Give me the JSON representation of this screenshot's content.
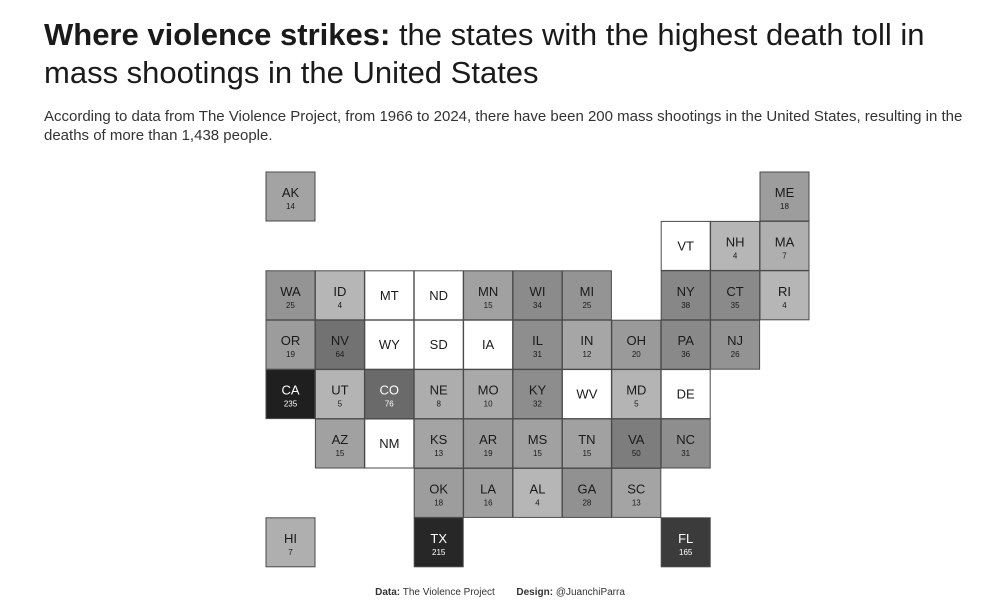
{
  "title": {
    "bold": "Where violence strikes:",
    "rest": " the states with the highest death toll in mass shootings in the United States"
  },
  "subtitle": "According to data from The Violence Project, from 1966 to 2024, there have been 200 mass shootings in the United States, resulting in the deaths of more than 1,438 people.",
  "footer": {
    "data_label": "Data:",
    "data_value": "The Violence Project",
    "design_label": "Design:",
    "design_value": "@JuanchiParra"
  },
  "chart_data": {
    "type": "heatmap",
    "layout": "tile-grid-map",
    "color_scale": [
      "#ffffff",
      "#1f1f1f"
    ],
    "states": [
      {
        "abbr": "AK",
        "value": 14,
        "row": 0,
        "col": 0
      },
      {
        "abbr": "ME",
        "value": 18,
        "row": 0,
        "col": 10
      },
      {
        "abbr": "VT",
        "value": null,
        "row": 1,
        "col": 8
      },
      {
        "abbr": "NH",
        "value": 4,
        "row": 1,
        "col": 9
      },
      {
        "abbr": "MA",
        "value": 7,
        "row": 1,
        "col": 10
      },
      {
        "abbr": "WA",
        "value": 25,
        "row": 2,
        "col": 0
      },
      {
        "abbr": "ID",
        "value": 4,
        "row": 2,
        "col": 1
      },
      {
        "abbr": "MT",
        "value": null,
        "row": 2,
        "col": 2
      },
      {
        "abbr": "ND",
        "value": null,
        "row": 2,
        "col": 3
      },
      {
        "abbr": "MN",
        "value": 15,
        "row": 2,
        "col": 4
      },
      {
        "abbr": "WI",
        "value": 34,
        "row": 2,
        "col": 5
      },
      {
        "abbr": "MI",
        "value": 25,
        "row": 2,
        "col": 6
      },
      {
        "abbr": "NY",
        "value": 38,
        "row": 2,
        "col": 8
      },
      {
        "abbr": "CT",
        "value": 35,
        "row": 2,
        "col": 9
      },
      {
        "abbr": "RI",
        "value": 4,
        "row": 2,
        "col": 10
      },
      {
        "abbr": "OR",
        "value": 19,
        "row": 3,
        "col": 0
      },
      {
        "abbr": "NV",
        "value": 64,
        "row": 3,
        "col": 1
      },
      {
        "abbr": "WY",
        "value": null,
        "row": 3,
        "col": 2
      },
      {
        "abbr": "SD",
        "value": null,
        "row": 3,
        "col": 3
      },
      {
        "abbr": "IA",
        "value": null,
        "row": 3,
        "col": 4
      },
      {
        "abbr": "IL",
        "value": 31,
        "row": 3,
        "col": 5
      },
      {
        "abbr": "IN",
        "value": 12,
        "row": 3,
        "col": 6
      },
      {
        "abbr": "OH",
        "value": 20,
        "row": 3,
        "col": 7
      },
      {
        "abbr": "PA",
        "value": 36,
        "row": 3,
        "col": 8
      },
      {
        "abbr": "NJ",
        "value": 26,
        "row": 3,
        "col": 9
      },
      {
        "abbr": "CA",
        "value": 235,
        "row": 4,
        "col": 0
      },
      {
        "abbr": "UT",
        "value": 5,
        "row": 4,
        "col": 1
      },
      {
        "abbr": "CO",
        "value": 76,
        "row": 4,
        "col": 2
      },
      {
        "abbr": "NE",
        "value": 8,
        "row": 4,
        "col": 3
      },
      {
        "abbr": "MO",
        "value": 10,
        "row": 4,
        "col": 4
      },
      {
        "abbr": "KY",
        "value": 32,
        "row": 4,
        "col": 5
      },
      {
        "abbr": "WV",
        "value": null,
        "row": 4,
        "col": 6
      },
      {
        "abbr": "MD",
        "value": 5,
        "row": 4,
        "col": 7
      },
      {
        "abbr": "DE",
        "value": null,
        "row": 4,
        "col": 8
      },
      {
        "abbr": "AZ",
        "value": 15,
        "row": 5,
        "col": 1
      },
      {
        "abbr": "NM",
        "value": null,
        "row": 5,
        "col": 2
      },
      {
        "abbr": "KS",
        "value": 13,
        "row": 5,
        "col": 3
      },
      {
        "abbr": "AR",
        "value": 19,
        "row": 5,
        "col": 4
      },
      {
        "abbr": "MS",
        "value": 15,
        "row": 5,
        "col": 5
      },
      {
        "abbr": "TN",
        "value": 15,
        "row": 5,
        "col": 6
      },
      {
        "abbr": "VA",
        "value": 50,
        "row": 5,
        "col": 7
      },
      {
        "abbr": "NC",
        "value": 31,
        "row": 5,
        "col": 8
      },
      {
        "abbr": "OK",
        "value": 18,
        "row": 6,
        "col": 3
      },
      {
        "abbr": "LA",
        "value": 16,
        "row": 6,
        "col": 4
      },
      {
        "abbr": "AL",
        "value": 4,
        "row": 6,
        "col": 5
      },
      {
        "abbr": "GA",
        "value": 28,
        "row": 6,
        "col": 6
      },
      {
        "abbr": "SC",
        "value": 13,
        "row": 6,
        "col": 7
      },
      {
        "abbr": "HI",
        "value": 7,
        "row": 7,
        "col": 0
      },
      {
        "abbr": "TX",
        "value": 215,
        "row": 7,
        "col": 3
      },
      {
        "abbr": "FL",
        "value": 165,
        "row": 7,
        "col": 8
      }
    ]
  }
}
